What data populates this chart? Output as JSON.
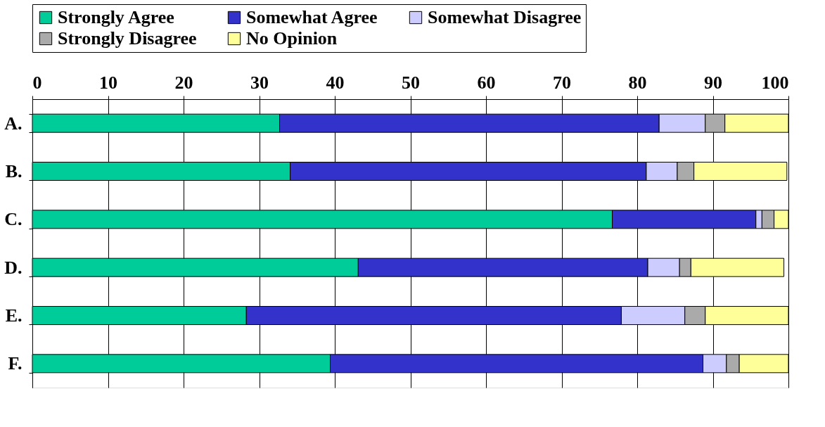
{
  "chart_data": {
    "type": "bar",
    "orientation": "horizontal",
    "stacked": true,
    "categories": [
      "A.",
      "B.",
      "C.",
      "D.",
      "E.",
      "F."
    ],
    "series": [
      {
        "name": "Strongly Agree",
        "color": "#00cc99",
        "values": [
          32.7,
          34.1,
          76.7,
          43.1,
          28.3,
          39.4
        ]
      },
      {
        "name": "Somewhat Agree",
        "color": "#3333cc",
        "values": [
          50.2,
          47.1,
          19.0,
          38.3,
          49.6,
          49.3
        ]
      },
      {
        "name": "Somewhat Disagree",
        "color": "#ccccff",
        "values": [
          6.1,
          4.1,
          0.8,
          4.2,
          8.4,
          3.1
        ]
      },
      {
        "name": "Strongly Disagree",
        "color": "#aaaaaa",
        "values": [
          2.6,
          2.2,
          1.6,
          1.5,
          2.7,
          1.7
        ]
      },
      {
        "name": "No Opinion",
        "color": "#ffff99",
        "values": [
          8.4,
          12.3,
          1.9,
          12.3,
          11.0,
          6.5
        ]
      }
    ],
    "xlim": [
      0,
      100
    ],
    "xticks": [
      0,
      10,
      20,
      30,
      40,
      50,
      60,
      70,
      80,
      90,
      100
    ],
    "grid": "x",
    "legend": "top"
  }
}
